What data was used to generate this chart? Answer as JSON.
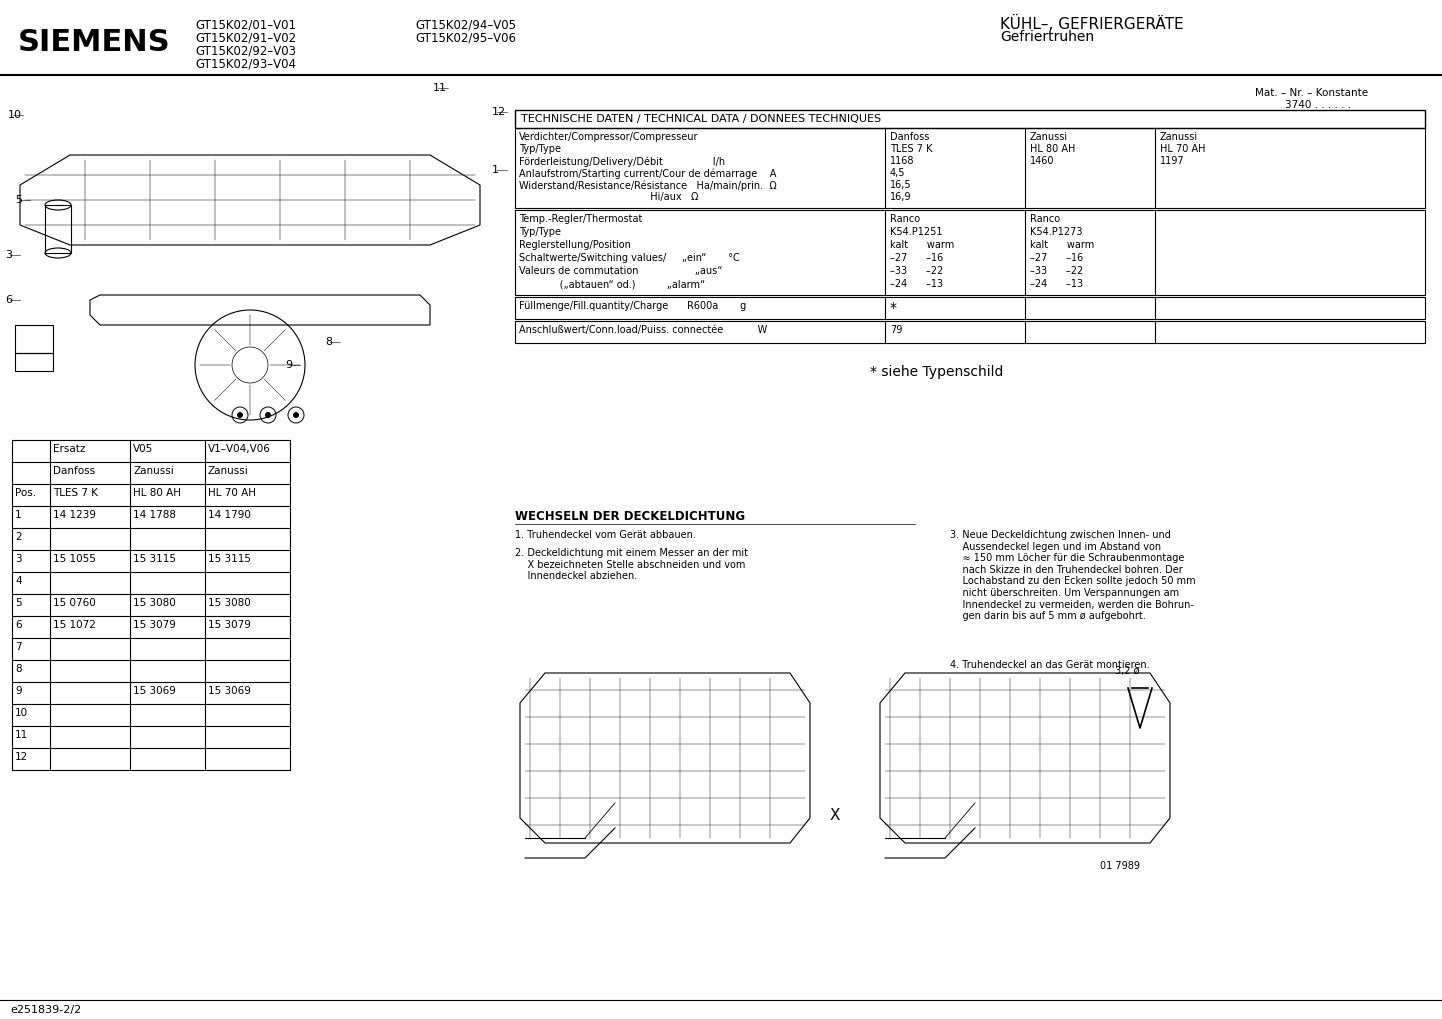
{
  "bg_color": "#ffffff",
  "siemens_text": "SIEMENS",
  "model_lines_left": [
    "GT15K02/01–V01",
    "GT15K02/91–V02",
    "GT15K02/92–V03",
    "GT15K02/93–V04"
  ],
  "model_lines_right": [
    "GT15K02/94–V05",
    "GT15K02/95–V06"
  ],
  "title_right": "KÜHL–, GEFRIERGERÄTE",
  "subtitle_right": "Gefriertruhen",
  "mat_nr": "Mat. – Nr. – Konstante",
  "mat_nr2": "3740 . . . . . .",
  "tech_data_header": "TECHNISCHE DATEN / TECHNICAL DATA / DONNEES TECHNIQUES",
  "t1_c0": [
    "Verdichter/Compressor/Compresseur",
    "Typ/Type",
    "Förderleistung/Delivery/Débit                l/h",
    "Anlaufstrom/Starting current/Cour de démarrage    A",
    "Widerstand/Resistance/Résistance   Ha/main/prin.  Ω",
    "                                          Hi/aux   Ω"
  ],
  "t1_c1": [
    "Danfoss",
    "TLES 7 K",
    "1168",
    "4,5",
    "16,5",
    "16,9"
  ],
  "t1_c2": [
    "Zanussi",
    "HL 80 AH",
    "1460"
  ],
  "t1_c3": [
    "Zanussi",
    "HL 70 AH",
    "1197"
  ],
  "t2_c0": [
    "Temp.-Regler/Thermostat",
    "Typ/Type",
    "Reglerstellung/Position",
    "Schaltwerte/Switching values/     „ein“       °C",
    "Valeurs de commutation                  „aus“",
    "             („abtauen“ od.)          „alarm“"
  ],
  "t2_c1": [
    "Ranco",
    "K54.P1251",
    "kalt      warm",
    "–27      –16",
    "–33      –22",
    "–24      –13"
  ],
  "t2_c2": [
    "Ranco",
    "K54.P1273",
    "kalt      warm",
    "–27      –16",
    "–33      –22",
    "–24      –13"
  ],
  "t3_label": "Füllmenge/Fill.quantity/Charge      R600a       g",
  "t3_val": "*",
  "t4_label": "Anschlußwert/Conn.load/Puiss. connectée           W",
  "t4_val": "79",
  "siehe_text": "* siehe Typenschild",
  "wechseln_title": "WECHSELN DER DECKELDICHTUNG",
  "wechseln_steps": [
    "1. Truhendeckel vom Gerät abbauen.",
    "2. Deckeldichtung mit einem Messer an der mit\n    X bezeichneten Stelle abschneiden und vom\n    Innendeckel abziehen.",
    "3. Neue Deckeldichtung zwischen Innen- und\n    Aussendeckel legen und im Abstand von\n    ≈ 150 mm Löcher für die Schraubenmontage\n    nach Skizze in den Truhendeckel bohren. Der\n    Lochabstand zu den Ecken sollte jedoch 50 mm\n    nicht überschreiten. Um Verspannungen am\n    Innendeckel zu vermeiden, werden die Bohrun-\n    gen darin bis auf 5 mm ø aufgebohrt.",
    "4. Truhendeckel an das Gerät montieren."
  ],
  "parts_table_h0": [
    "",
    "Ersatz",
    "V05",
    "V1–V04,V06"
  ],
  "parts_table_h1": [
    "",
    "Danfoss",
    "Zanussi",
    "Zanussi"
  ],
  "parts_table_h2": [
    "Pos.",
    "TLES 7 K",
    "HL 80 AH",
    "HL 70 AH"
  ],
  "parts_table_data": [
    [
      "1",
      "14 1239",
      "14 1788",
      "14 1790"
    ],
    [
      "2",
      "",
      "",
      ""
    ],
    [
      "3",
      "15 1055",
      "15 3115",
      "15 3115"
    ],
    [
      "4",
      "",
      "",
      ""
    ],
    [
      "5",
      "15 0760",
      "15 3080",
      "15 3080"
    ],
    [
      "6",
      "15 1072",
      "15 3079",
      "15 3079"
    ],
    [
      "7",
      "",
      "",
      ""
    ],
    [
      "8",
      "",
      "",
      ""
    ],
    [
      "9",
      "",
      "15 3069",
      "15 3069"
    ],
    [
      "10",
      "",
      "",
      ""
    ],
    [
      "11",
      "",
      "",
      ""
    ],
    [
      "12",
      "",
      "",
      ""
    ]
  ],
  "drill_label": "3,2 ø",
  "article_nr": "01 7989",
  "x_label": "X",
  "doc_number": "e251839-2/2"
}
